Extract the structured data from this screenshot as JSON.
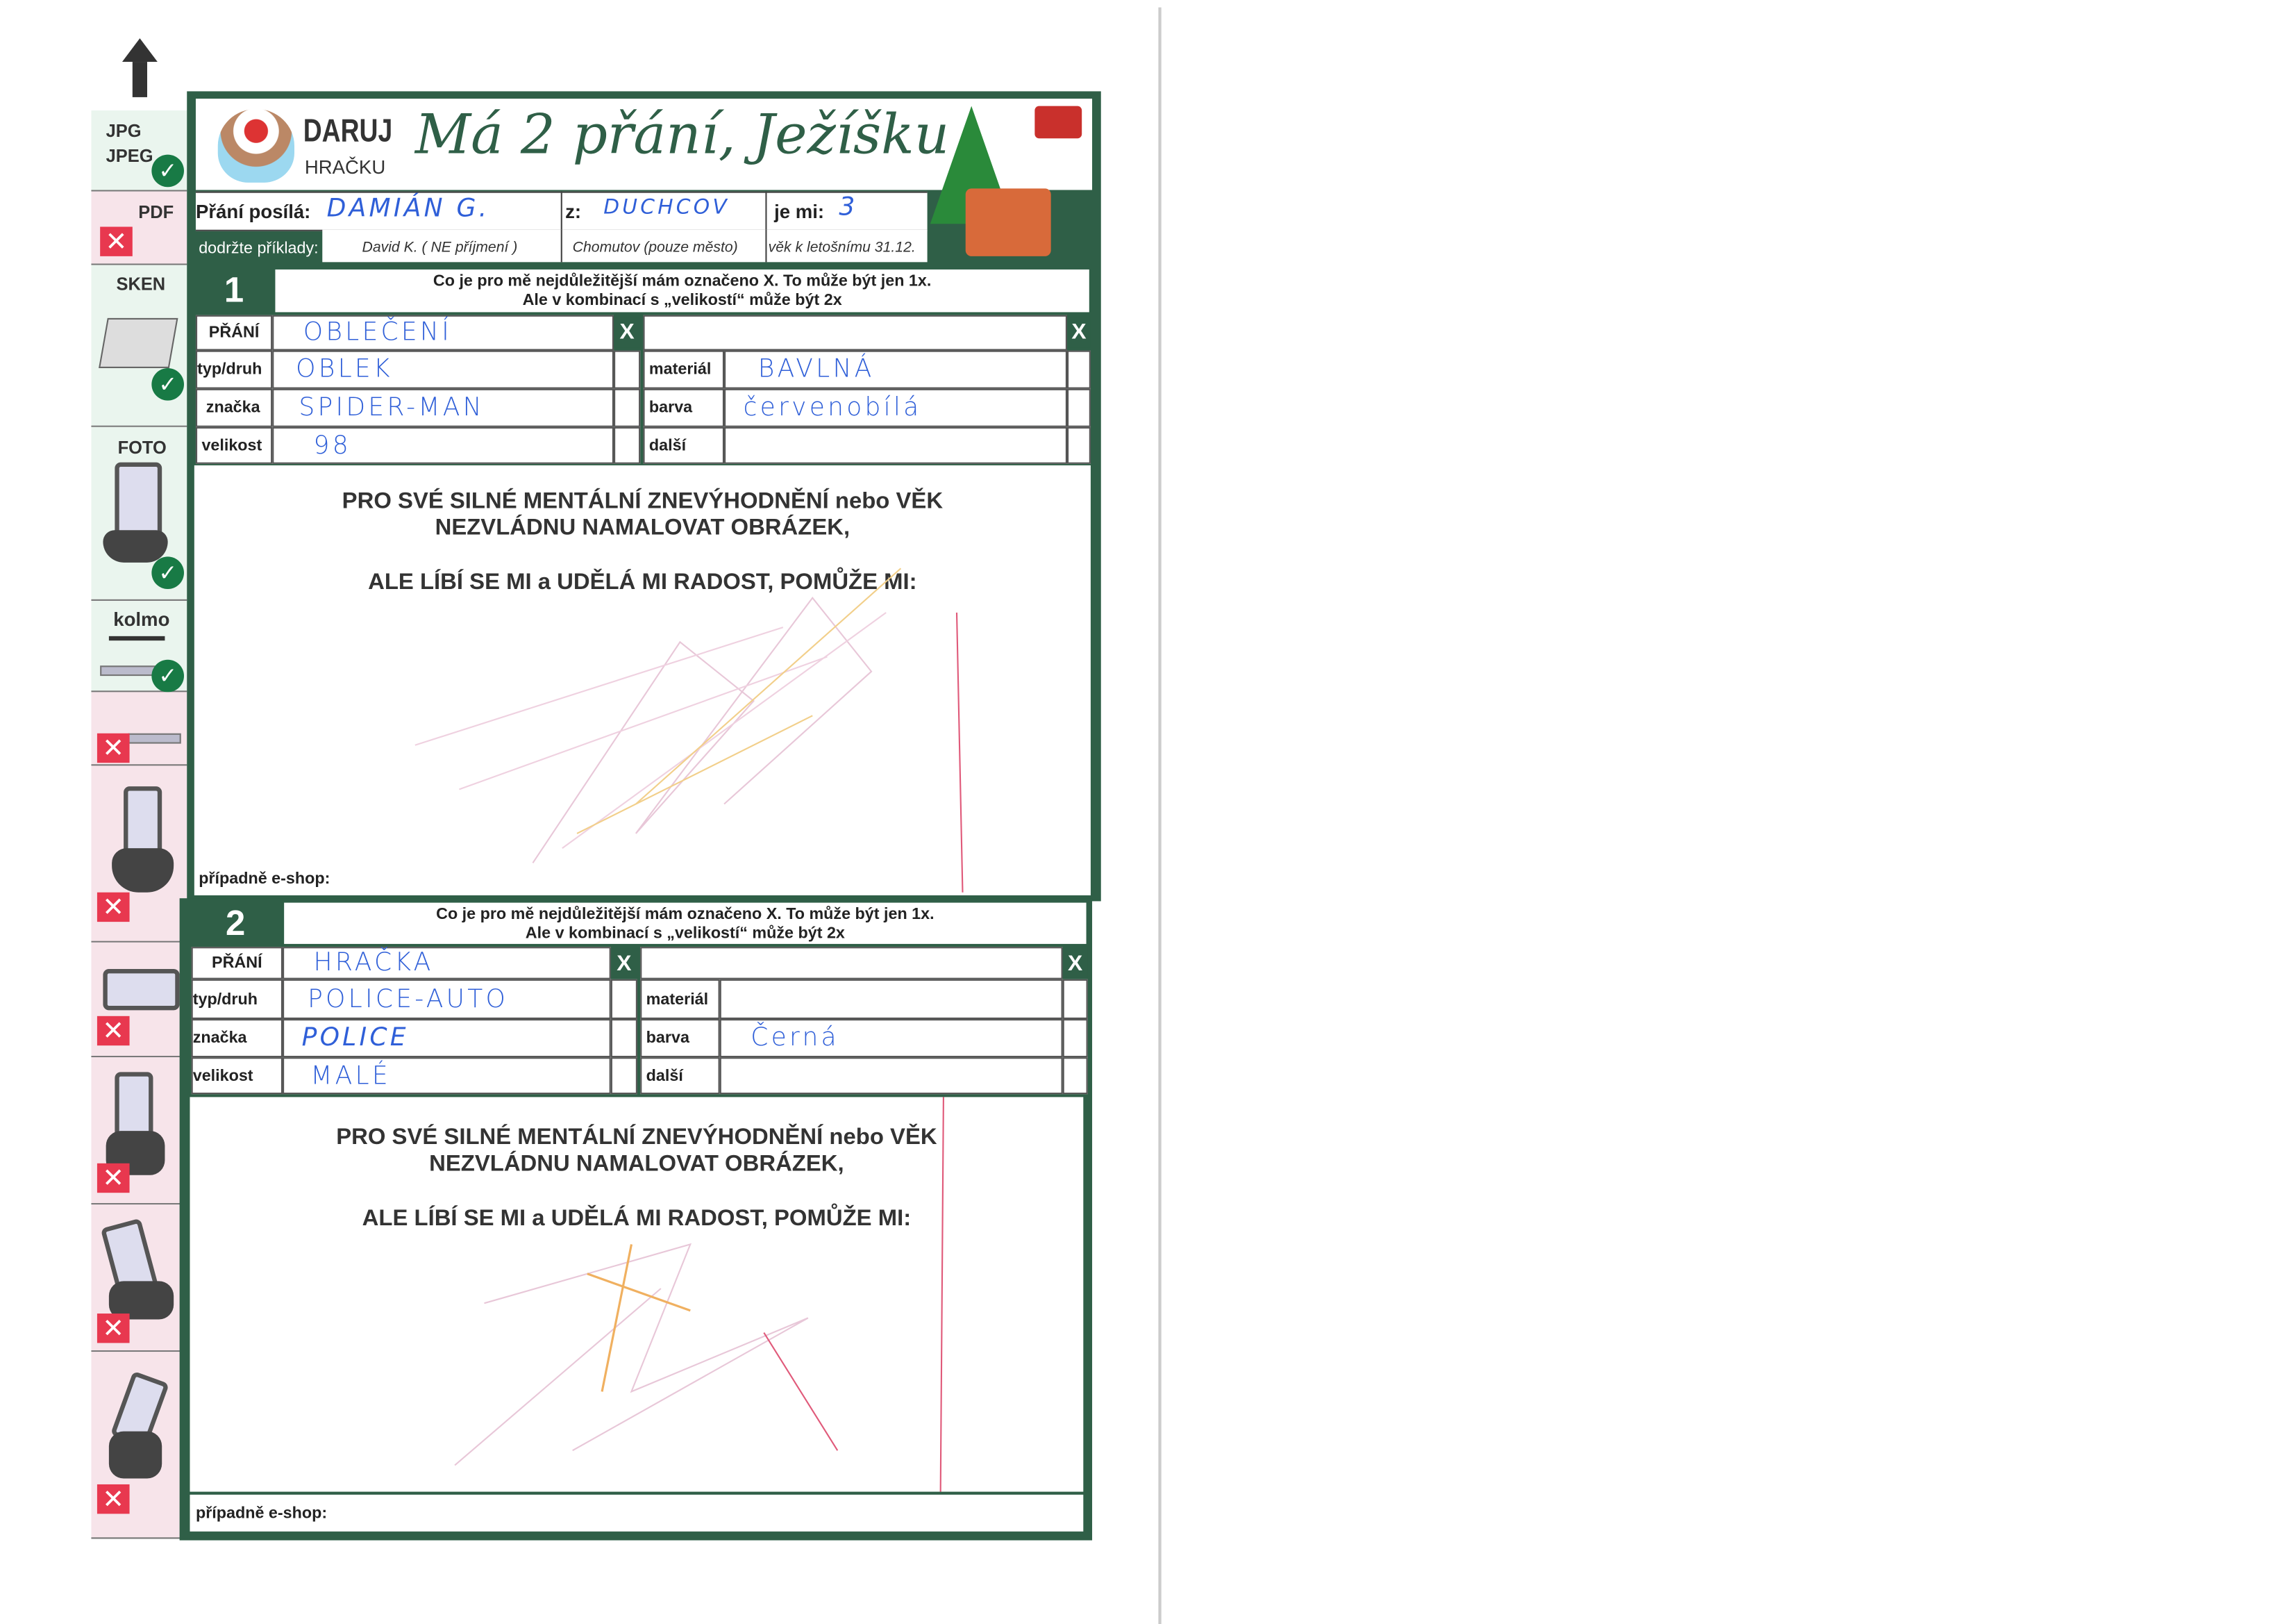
{
  "sidebar": {
    "items": [
      {
        "label": "JPG\nJPEG",
        "status": "ok"
      },
      {
        "label": "PDF",
        "status": "no"
      },
      {
        "label": "SKEN",
        "status": "ok"
      },
      {
        "label": "FOTO",
        "status": "ok"
      },
      {
        "label": "kolmo",
        "status": "ok"
      },
      {
        "label": "",
        "status": "no"
      },
      {
        "label": "",
        "status": "no"
      },
      {
        "label": "",
        "status": "no"
      },
      {
        "label": "",
        "status": "no"
      },
      {
        "label": "",
        "status": "no"
      },
      {
        "label": "",
        "status": "no"
      }
    ],
    "ok_glyph": "✓",
    "no_glyph": "✕"
  },
  "header": {
    "logo_top": "DARUJ",
    "logo_bottom": "HRAČKU",
    "title": "Má 2 přání, Ježíšku",
    "sender_label": "Přání posílá:",
    "sender_value": "DAMIÁN G.",
    "from_label": "z:",
    "from_value": "DUCHCOV",
    "age_label": "je mi:",
    "age_value": "3",
    "examples_label": "dodržte příklady:",
    "example_name": "David K. ( NE příjmení )",
    "example_city": "Chomutov  (pouze město)",
    "example_age": "věk k letošnímu 31.12."
  },
  "colors": {
    "frame": "#2f5f47",
    "handwriting": "#2f5fd8",
    "ok": "#187a45",
    "no": "#e8384f"
  },
  "wishes": [
    {
      "number": "1",
      "instruction_1": "Co je pro mě nejdůležitější mám označeno X.  To může být jen 1x.",
      "instruction_2": "Ale v kombinací s „velikostí“ může být 2x",
      "x_mark": "X",
      "labels": {
        "wish": "PŘÁNÍ",
        "type": "typ/druh",
        "brand": "značka",
        "size": "velikost",
        "material": "materiál",
        "color": "barva",
        "other": "další"
      },
      "values": {
        "wish": "OBLEČENÍ",
        "type": "OBLEK",
        "brand": "SPIDER-MAN",
        "size": "98",
        "material": "BAVLNÁ",
        "color": "červenobílá",
        "other": ""
      },
      "drawing_text_1": "PRO SVÉ SILNÉ MENTÁLNÍ ZNEVÝHODNĚNÍ nebo VĚK",
      "drawing_text_2": "NEZVLÁDNU NAMALOVAT OBRÁZEK,",
      "drawing_text_3": "ALE LÍBÍ SE MI a UDĚLÁ MI RADOST, POMŮŽE MI:",
      "eshop_label": "případně e-shop:"
    },
    {
      "number": "2",
      "instruction_1": "Co je pro mě nejdůležitější mám označeno X.  To může být jen 1x.",
      "instruction_2": "Ale v kombinací s „velikostí“ může být 2x",
      "x_mark": "X",
      "labels": {
        "wish": "PŘÁNÍ",
        "type": "typ/druh",
        "brand": "značka",
        "size": "velikost",
        "material": "materiál",
        "color": "barva",
        "other": "další"
      },
      "values": {
        "wish": "HRAČKA",
        "type": "POLICE-AUTO",
        "brand": "POLICE",
        "size": "MALÉ",
        "material": "",
        "color": "Černá",
        "other": ""
      },
      "drawing_text_1": "PRO SVÉ SILNÉ MENTÁLNÍ ZNEVÝHODNĚNÍ nebo VĚK",
      "drawing_text_2": "NEZVLÁDNU NAMALOVAT OBRÁZEK,",
      "drawing_text_3": "ALE LÍBÍ SE MI a UDĚLÁ MI RADOST, POMŮŽE MI:",
      "eshop_label": "případně e-shop:"
    }
  ]
}
